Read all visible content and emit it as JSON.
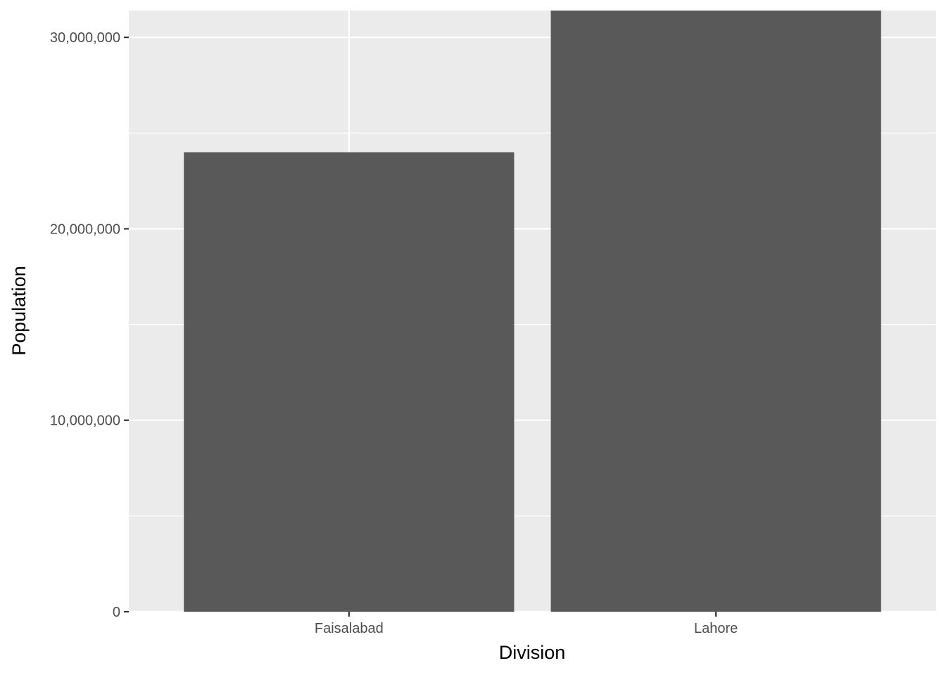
{
  "chart_data": {
    "type": "bar",
    "xlabel": "Division",
    "ylabel": "Population",
    "categories": [
      "Faisalabad",
      "Lahore"
    ],
    "values": [
      24000000,
      31400000
    ],
    "ylim": [
      0,
      31400000
    ],
    "y_ticks": [
      0,
      10000000,
      20000000,
      30000000
    ],
    "y_tick_labels": [
      "0",
      "10,000,000",
      "20,000,000",
      "30,000,000"
    ],
    "grid": true,
    "legend": "none",
    "colors": {
      "bar": "#595959",
      "panel": "#ebebeb",
      "grid": "#ffffff"
    }
  }
}
